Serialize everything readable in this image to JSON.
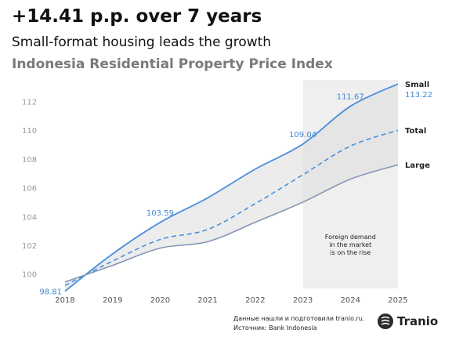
{
  "header": {
    "title": "+14.41 p.p. over 7 years",
    "subtitle": "Small-format housing leads the growth",
    "subtitle2": "Indonesia Residential Property Price Index"
  },
  "chart_data": {
    "type": "line",
    "x": [
      2018,
      2019,
      2020,
      2021,
      2022,
      2023,
      2024,
      2025
    ],
    "xlim": [
      2018,
      2025
    ],
    "ylim": [
      99,
      113.5
    ],
    "yticks": [
      100,
      102,
      104,
      106,
      108,
      110,
      112
    ],
    "grid": false,
    "series": [
      {
        "name": "Small",
        "values": [
          98.81,
          101.4,
          103.59,
          105.3,
          107.3,
          109.04,
          111.67,
          113.22
        ],
        "color": "#4a8fdc",
        "style": "solid"
      },
      {
        "name": "Total",
        "values": [
          99.2,
          100.9,
          102.4,
          103.1,
          104.9,
          106.9,
          108.9,
          110.0
        ],
        "color": "#4a8fdc",
        "style": "dashed"
      },
      {
        "name": "Large",
        "values": [
          99.45,
          100.6,
          101.8,
          102.25,
          103.6,
          105.0,
          106.6,
          107.6
        ],
        "color": "#8597b6",
        "style": "solid"
      }
    ],
    "data_labels": [
      {
        "x": 2018,
        "y": 98.81,
        "text": "98.81"
      },
      {
        "x": 2020,
        "y": 103.59,
        "text": "103.59"
      },
      {
        "x": 2023,
        "y": 109.04,
        "text": "109.04"
      },
      {
        "x": 2024,
        "y": 111.67,
        "text": "111.67"
      },
      {
        "x": 2025,
        "y": 113.22,
        "text": "113.22"
      }
    ],
    "highlight_period": {
      "from": 2023,
      "to": 2025,
      "note": [
        "Foreign demand",
        "in the market",
        "is on the rise"
      ]
    }
  },
  "footer": {
    "line1": "Данные нашли и подготовили tranio.ru.",
    "line2": "Источник: Bank Indonesia",
    "logo_text": "Tranio",
    "logo_icon": "tranio-logo-icon"
  }
}
